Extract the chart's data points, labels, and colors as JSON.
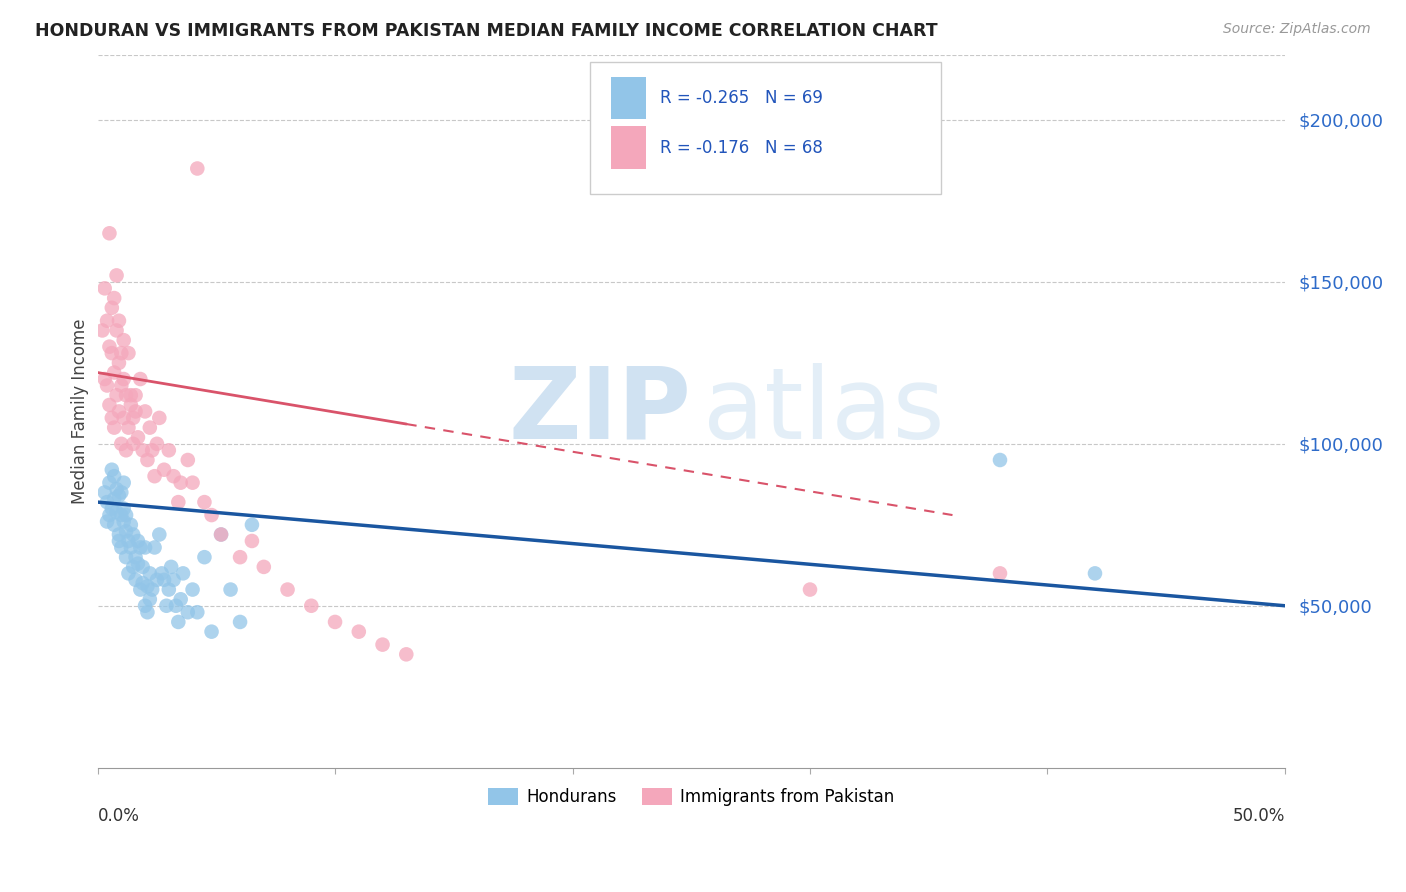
{
  "title": "HONDURAN VS IMMIGRANTS FROM PAKISTAN MEDIAN FAMILY INCOME CORRELATION CHART",
  "source": "Source: ZipAtlas.com",
  "ylabel": "Median Family Income",
  "ylim": [
    0,
    220000
  ],
  "xlim": [
    0.0,
    0.5
  ],
  "ytick_vals": [
    50000,
    100000,
    150000,
    200000
  ],
  "ytick_labels": [
    "$50,000",
    "$100,000",
    "$150,000",
    "$200,000"
  ],
  "legend_r_blue": "R = -0.265",
  "legend_n_blue": "N = 69",
  "legend_r_pink": "R = -0.176",
  "legend_n_pink": "N = 68",
  "legend_label_blue": "Hondurans",
  "legend_label_pink": "Immigrants from Pakistan",
  "watermark_zip": "ZIP",
  "watermark_atlas": "atlas",
  "blue_color": "#92c5e8",
  "pink_color": "#f4a7bb",
  "line_blue": "#1a56a0",
  "line_pink": "#d9536a",
  "blue_line_y0": 82000,
  "blue_line_y1": 50000,
  "pink_line_y0": 122000,
  "pink_line_y1": 78000,
  "pink_solid_xend": 0.13,
  "pink_dash_xend": 0.36,
  "hondurans_x": [
    0.003,
    0.004,
    0.004,
    0.005,
    0.005,
    0.006,
    0.006,
    0.007,
    0.007,
    0.007,
    0.008,
    0.008,
    0.009,
    0.009,
    0.009,
    0.01,
    0.01,
    0.01,
    0.011,
    0.011,
    0.011,
    0.012,
    0.012,
    0.012,
    0.013,
    0.013,
    0.014,
    0.014,
    0.015,
    0.015,
    0.016,
    0.016,
    0.017,
    0.017,
    0.018,
    0.018,
    0.019,
    0.019,
    0.02,
    0.02,
    0.021,
    0.021,
    0.022,
    0.022,
    0.023,
    0.024,
    0.025,
    0.026,
    0.027,
    0.028,
    0.029,
    0.03,
    0.031,
    0.032,
    0.033,
    0.034,
    0.035,
    0.036,
    0.038,
    0.04,
    0.042,
    0.045,
    0.048,
    0.052,
    0.056,
    0.06,
    0.065,
    0.38,
    0.42
  ],
  "hondurans_y": [
    85000,
    82000,
    76000,
    78000,
    88000,
    80000,
    92000,
    75000,
    83000,
    90000,
    79000,
    86000,
    72000,
    84000,
    70000,
    78000,
    85000,
    68000,
    80000,
    76000,
    88000,
    73000,
    65000,
    78000,
    70000,
    60000,
    68000,
    75000,
    62000,
    72000,
    65000,
    58000,
    63000,
    70000,
    55000,
    68000,
    57000,
    62000,
    50000,
    68000,
    56000,
    48000,
    60000,
    52000,
    55000,
    68000,
    58000,
    72000,
    60000,
    58000,
    50000,
    55000,
    62000,
    58000,
    50000,
    45000,
    52000,
    60000,
    48000,
    55000,
    48000,
    65000,
    42000,
    72000,
    55000,
    45000,
    75000,
    95000,
    60000
  ],
  "pakistan_x": [
    0.002,
    0.003,
    0.003,
    0.004,
    0.004,
    0.005,
    0.005,
    0.005,
    0.006,
    0.006,
    0.006,
    0.007,
    0.007,
    0.007,
    0.008,
    0.008,
    0.008,
    0.009,
    0.009,
    0.009,
    0.01,
    0.01,
    0.01,
    0.011,
    0.011,
    0.011,
    0.012,
    0.012,
    0.013,
    0.013,
    0.014,
    0.014,
    0.015,
    0.015,
    0.016,
    0.016,
    0.017,
    0.018,
    0.019,
    0.02,
    0.021,
    0.022,
    0.023,
    0.024,
    0.025,
    0.026,
    0.028,
    0.03,
    0.032,
    0.034,
    0.035,
    0.038,
    0.04,
    0.042,
    0.045,
    0.048,
    0.052,
    0.06,
    0.065,
    0.07,
    0.08,
    0.09,
    0.1,
    0.11,
    0.12,
    0.13,
    0.3,
    0.38
  ],
  "pakistan_y": [
    135000,
    148000,
    120000,
    138000,
    118000,
    130000,
    165000,
    112000,
    128000,
    142000,
    108000,
    145000,
    122000,
    105000,
    135000,
    152000,
    115000,
    125000,
    138000,
    110000,
    128000,
    118000,
    100000,
    132000,
    108000,
    120000,
    115000,
    98000,
    128000,
    105000,
    115000,
    112000,
    108000,
    100000,
    110000,
    115000,
    102000,
    120000,
    98000,
    110000,
    95000,
    105000,
    98000,
    90000,
    100000,
    108000,
    92000,
    98000,
    90000,
    82000,
    88000,
    95000,
    88000,
    185000,
    82000,
    78000,
    72000,
    65000,
    70000,
    62000,
    55000,
    50000,
    45000,
    42000,
    38000,
    35000,
    55000,
    60000
  ]
}
